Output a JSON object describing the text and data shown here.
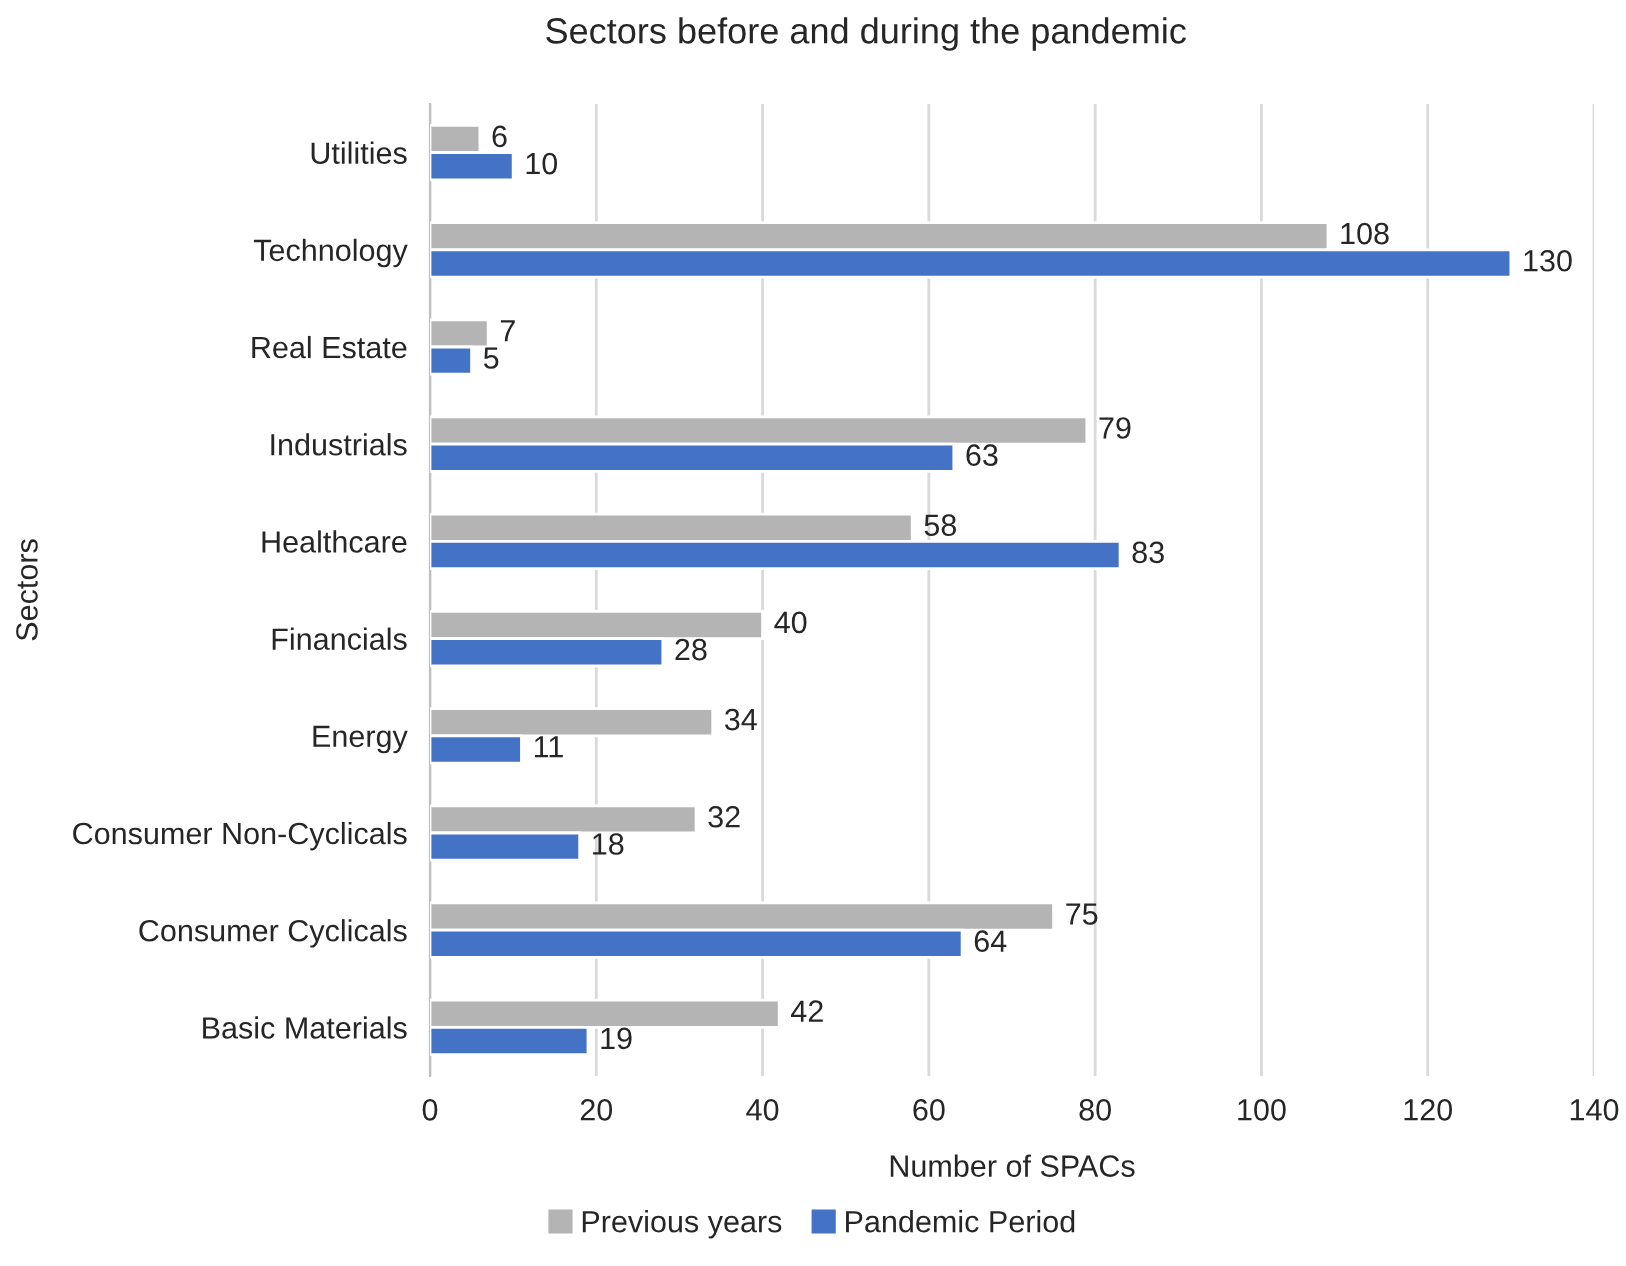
{
  "chart_data": {
    "type": "bar",
    "orientation": "horizontal",
    "title": "Sectors before and during the pandemic",
    "xlabel": "Number of SPACs",
    "ylabel": "Sectors",
    "categories": [
      "Utilities",
      "Technology",
      "Real Estate",
      "Industrials",
      "Healthcare",
      "Financials",
      "Energy",
      "Consumer Non-Cyclicals",
      "Consumer Cyclicals",
      "Basic Materials"
    ],
    "series": [
      {
        "name": "Previous years",
        "color": "#b4b4b4",
        "values": [
          6,
          108,
          7,
          79,
          58,
          40,
          34,
          32,
          75,
          42
        ]
      },
      {
        "name": "Pandemic Period",
        "color": "#4472c4",
        "values": [
          10,
          130,
          5,
          63,
          83,
          28,
          11,
          18,
          64,
          19
        ]
      }
    ],
    "xlim": [
      0,
      140
    ],
    "xticks": [
      0,
      20,
      40,
      60,
      80,
      100,
      120,
      140
    ],
    "grid": "x",
    "legend": "bottom",
    "data_labels": true
  }
}
